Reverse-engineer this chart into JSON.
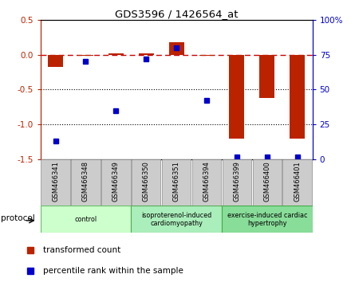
{
  "title": "GDS3596 / 1426564_at",
  "samples": [
    "GSM466341",
    "GSM466348",
    "GSM466349",
    "GSM466350",
    "GSM466351",
    "GSM466394",
    "GSM466399",
    "GSM466400",
    "GSM466401"
  ],
  "red_values": [
    -0.18,
    -0.02,
    0.02,
    0.02,
    0.18,
    -0.02,
    -1.2,
    -0.62,
    -1.2
  ],
  "blue_values_pct": [
    13,
    70,
    35,
    72,
    80,
    42,
    2,
    2,
    2
  ],
  "ylim_left": [
    -1.5,
    0.5
  ],
  "ylim_right": [
    0,
    100
  ],
  "yticks_left": [
    -1.5,
    -1.0,
    -0.5,
    0.0,
    0.5
  ],
  "yticks_right": [
    0,
    25,
    50,
    75,
    100
  ],
  "yticklabels_right": [
    "0",
    "25",
    "50",
    "75",
    "100%"
  ],
  "red_color": "#BB2200",
  "blue_color": "#0000CC",
  "dashed_color": "#CC0000",
  "groups": [
    {
      "label": "control",
      "start": 0,
      "end": 3,
      "color": "#CCFFCC",
      "border": "#66BB66"
    },
    {
      "label": "isoproterenol-induced\ncardiomyopathy",
      "start": 3,
      "end": 6,
      "color": "#AAEEBB",
      "border": "#55AA55"
    },
    {
      "label": "exercise-induced cardiac\nhypertrophy",
      "start": 6,
      "end": 9,
      "color": "#88DD99",
      "border": "#44AA44"
    }
  ],
  "protocol_label": "protocol",
  "legend_red": "transformed count",
  "legend_blue": "percentile rank within the sample",
  "bar_width": 0.5,
  "sample_box_color": "#CCCCCC",
  "sample_box_edge": "#999999"
}
